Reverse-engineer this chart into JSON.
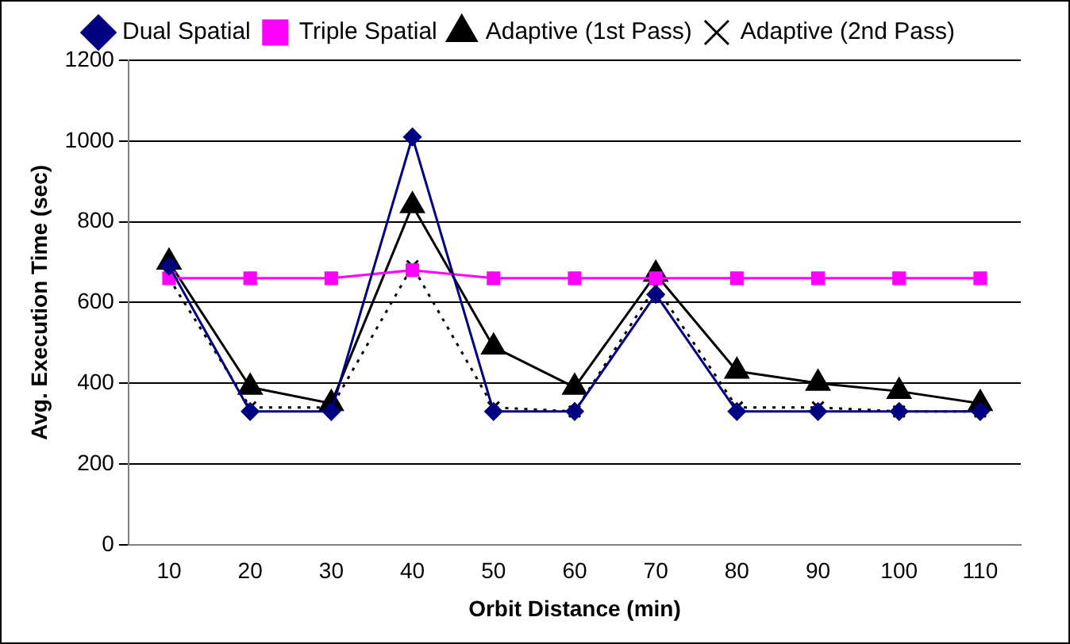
{
  "chart_data": {
    "type": "line",
    "xlabel": "Orbit Distance (min)",
    "ylabel": "Avg. Execution Time (sec)",
    "categories": [
      "10",
      "20",
      "30",
      "40",
      "50",
      "60",
      "70",
      "80",
      "90",
      "100",
      "110"
    ],
    "series": [
      {
        "name": "Dual Spatial",
        "color": "#000080",
        "marker": "diamond",
        "line_style": "solid",
        "values": [
          690,
          330,
          330,
          1010,
          330,
          330,
          620,
          330,
          330,
          330,
          330
        ]
      },
      {
        "name": "Triple Spatial",
        "color": "#ff00ff",
        "marker": "square",
        "line_style": "solid",
        "values": [
          660,
          660,
          660,
          680,
          660,
          660,
          660,
          660,
          660,
          660,
          660
        ]
      },
      {
        "name": "Adaptive (1st Pass)",
        "color": "#000000",
        "marker": "triangle",
        "line_style": "solid",
        "values": [
          700,
          390,
          350,
          840,
          490,
          390,
          670,
          430,
          400,
          380,
          350
        ]
      },
      {
        "name": "Adaptive (2nd Pass)",
        "color": "#000000",
        "marker": "cross",
        "line_style": "dotted",
        "values": [
          660,
          340,
          340,
          690,
          340,
          330,
          640,
          340,
          340,
          330,
          330
        ]
      }
    ],
    "ylim": [
      0,
      1200
    ],
    "yticks": [
      0,
      200,
      400,
      600,
      800,
      1000,
      1200
    ],
    "grid": "y",
    "legend": "top"
  }
}
